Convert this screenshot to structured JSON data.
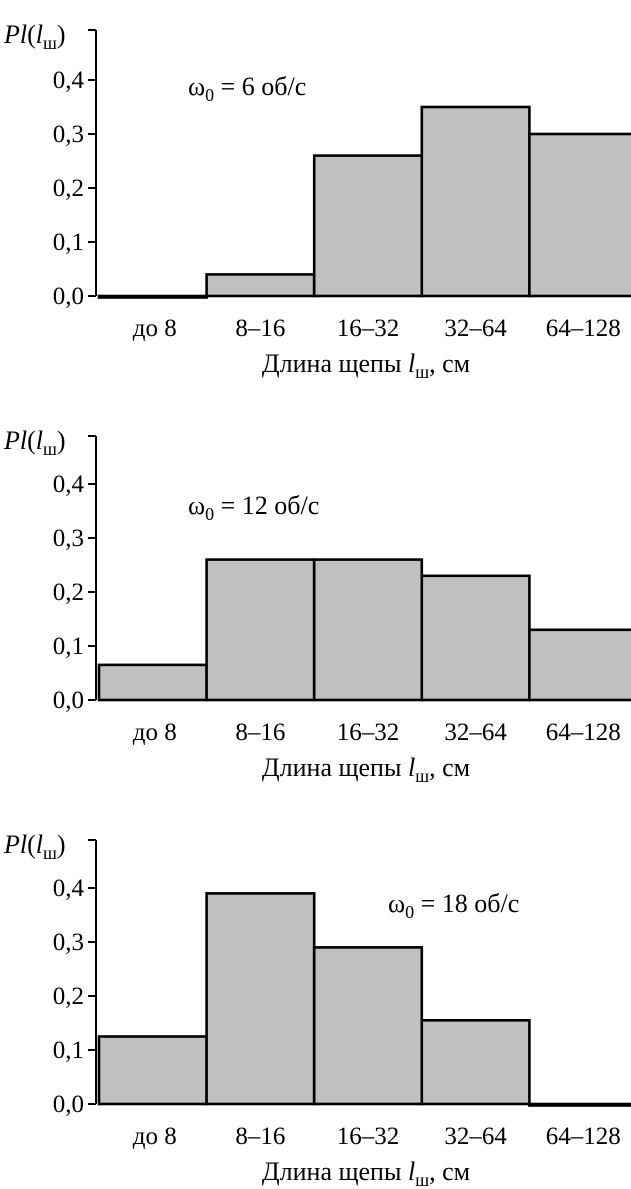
{
  "chart_data": [
    {
      "type": "bar",
      "categories": [
        "до 8",
        "8–16",
        "16–32",
        "32–64",
        "64–128"
      ],
      "values": [
        0.0,
        0.04,
        0.26,
        0.35,
        0.3
      ],
      "ylim": [
        0,
        0.4
      ],
      "yticks": [
        "0,0",
        "0,1",
        "0,2",
        "0,3",
        "0,4"
      ],
      "ylabel": {
        "main": "P(l",
        "sub": "ш",
        "close": ")"
      },
      "xlabel": {
        "prefix": "Длина щепы ",
        "var": "l",
        "sub": "ш",
        "suffix": ", см"
      },
      "annotation": {
        "omega": "ω",
        "sub": "0",
        "rest": " = 6 об/с",
        "position": "top-left"
      },
      "bar_color": "#c0c0c0",
      "grid": false
    },
    {
      "type": "bar",
      "categories": [
        "до 8",
        "8–16",
        "16–32",
        "32–64",
        "64–128"
      ],
      "values": [
        0.065,
        0.26,
        0.26,
        0.23,
        0.13
      ],
      "ylim": [
        0,
        0.4
      ],
      "yticks": [
        "0,0",
        "0,1",
        "0,2",
        "0,3",
        "0,4"
      ],
      "ylabel": {
        "main": "P(l",
        "sub": "ш",
        "close": ")"
      },
      "xlabel": {
        "prefix": "Длина щепы ",
        "var": "l",
        "sub": "ш",
        "suffix": ", см"
      },
      "annotation": {
        "omega": "ω",
        "sub": "0",
        "rest": " = 12 об/с",
        "position": "top-left"
      },
      "bar_color": "#c0c0c0",
      "grid": false
    },
    {
      "type": "bar",
      "categories": [
        "до 8",
        "8–16",
        "16–32",
        "32–64",
        "64–128"
      ],
      "values": [
        0.125,
        0.39,
        0.29,
        0.155,
        0.0
      ],
      "ylim": [
        0,
        0.4
      ],
      "yticks": [
        "0,0",
        "0,1",
        "0,2",
        "0,3",
        "0,4"
      ],
      "ylabel": {
        "main": "P(l",
        "sub": "ш",
        "close": ")"
      },
      "xlabel": {
        "prefix": "Длина щепы ",
        "var": "l",
        "sub": "ш",
        "suffix": ", см"
      },
      "annotation": {
        "omega": "ω",
        "sub": "0",
        "rest": " = 18 об/с",
        "position": "top-right"
      },
      "bar_color": "#c0c0c0",
      "grid": false
    }
  ]
}
